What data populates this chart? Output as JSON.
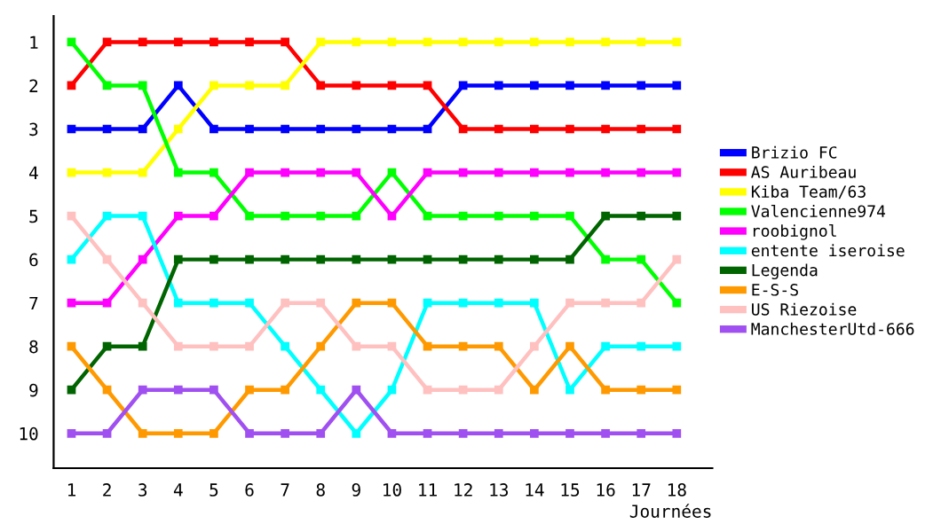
{
  "chart_data": {
    "type": "line",
    "xlabel": "Journées",
    "x": [
      1,
      2,
      3,
      4,
      5,
      6,
      7,
      8,
      9,
      10,
      11,
      12,
      13,
      14,
      15,
      16,
      17,
      18
    ],
    "xlim": [
      0.5,
      19
    ],
    "xticks": [
      1,
      2,
      3,
      4,
      5,
      6,
      7,
      8,
      9,
      10,
      11,
      12,
      13,
      14,
      15,
      16,
      17,
      18
    ],
    "ylim": [
      10.8,
      0.4
    ],
    "yticks": [
      1,
      2,
      3,
      4,
      5,
      6,
      7,
      8,
      9,
      10
    ],
    "legend": "right",
    "grid": false,
    "marker": "square",
    "line_style": "solid",
    "series": [
      {
        "name": "Brizio FC",
        "color": "#0000ff",
        "values": [
          3,
          3,
          3,
          2,
          3,
          3,
          3,
          3,
          3,
          3,
          3,
          2,
          2,
          2,
          2,
          2,
          2,
          2
        ]
      },
      {
        "name": "AS Auribeau",
        "color": "#ff0000",
        "values": [
          2,
          1,
          1,
          1,
          1,
          1,
          1,
          2,
          2,
          2,
          2,
          3,
          3,
          3,
          3,
          3,
          3,
          3
        ]
      },
      {
        "name": "Kiba Team/63",
        "color": "#ffff00",
        "values": [
          4,
          4,
          4,
          3,
          2,
          2,
          2,
          1,
          1,
          1,
          1,
          1,
          1,
          1,
          1,
          1,
          1,
          1
        ]
      },
      {
        "name": "Valencienne974",
        "color": "#00ff00",
        "values": [
          1,
          2,
          2,
          4,
          4,
          5,
          5,
          5,
          5,
          4,
          5,
          5,
          5,
          5,
          5,
          6,
          6,
          7
        ]
      },
      {
        "name": "roobignol",
        "color": "#ff00ff",
        "values": [
          7,
          7,
          6,
          5,
          5,
          4,
          4,
          4,
          4,
          5,
          4,
          4,
          4,
          4,
          4,
          4,
          4,
          4
        ]
      },
      {
        "name": "entente iseroise",
        "color": "#00ffff",
        "values": [
          6,
          5,
          5,
          7,
          7,
          7,
          8,
          9,
          10,
          9,
          7,
          7,
          7,
          7,
          9,
          8,
          8,
          8
        ]
      },
      {
        "name": "Legenda",
        "color": "#006400",
        "values": [
          9,
          8,
          8,
          6,
          6,
          6,
          6,
          6,
          6,
          6,
          6,
          6,
          6,
          6,
          6,
          5,
          5,
          5
        ]
      },
      {
        "name": "E-S-S",
        "color": "#ff9900",
        "values": [
          8,
          9,
          10,
          10,
          10,
          9,
          9,
          8,
          7,
          7,
          8,
          8,
          8,
          9,
          8,
          9,
          9,
          9
        ]
      },
      {
        "name": "US Riezoise",
        "color": "#ffc0c0",
        "values": [
          5,
          6,
          7,
          8,
          8,
          8,
          7,
          7,
          8,
          8,
          9,
          9,
          9,
          8,
          7,
          7,
          7,
          6
        ]
      },
      {
        "name": "ManchesterUtd-666",
        "color": "#a050f0",
        "values": [
          10,
          10,
          9,
          9,
          9,
          10,
          10,
          10,
          9,
          10,
          10,
          10,
          10,
          10,
          10,
          10,
          10,
          10
        ]
      }
    ]
  }
}
